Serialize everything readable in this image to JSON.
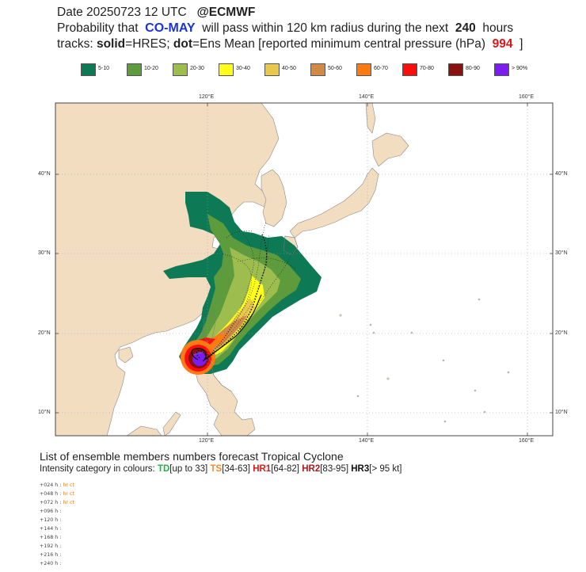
{
  "header": {
    "line1_prefix": "Date 20250723 12 UTC",
    "line1_source": "@ECMWF",
    "line2_prefix": "Probability that",
    "storm_name": "CO-MAY",
    "line2_mid": "will pass within 120 km radius during the next",
    "hours": "240",
    "line2_suffix": "hours",
    "line3_a": "tracks:",
    "line3_solid": "solid",
    "line3_b": "=HRES;",
    "line3_dot": "dot",
    "line3_c": "=Ens Mean [reported minimum central pressure (hPa)",
    "pressure": "994",
    "line3_end": "]"
  },
  "legend": [
    {
      "label": "5-10",
      "color": "#0e7a55"
    },
    {
      "label": "10-20",
      "color": "#5d9b3c"
    },
    {
      "label": "20-30",
      "color": "#9dbd4f"
    },
    {
      "label": "30-40",
      "color": "#ffff1a"
    },
    {
      "label": "40-50",
      "color": "#e9c94b"
    },
    {
      "label": "50-60",
      "color": "#d08a45"
    },
    {
      "label": "60-70",
      "color": "#ff7a12"
    },
    {
      "label": "70-80",
      "color": "#ff0d0d"
    },
    {
      "label": "80-90",
      "color": "#8a1010"
    },
    {
      "label": "> 90%",
      "color": "#7b1cf0"
    }
  ],
  "axes": {
    "lon_labels": [
      "120°E",
      "140°E",
      "160°E"
    ],
    "lat_labels": [
      "40°N",
      "30°N",
      "20°N",
      "10°N"
    ]
  },
  "list": {
    "title": "List of ensemble members numbers forecast Tropical Cyclone",
    "sub_prefix": "Intensity category in colours:",
    "td": "TD",
    "td_range": "[up to 33]",
    "ts": "TS",
    "ts_range": "[34-63]",
    "hr1": "HR1",
    "hr1_range": "[64-82]",
    "hr2": "HR2",
    "hr2_range": "[83-95]",
    "hr3": "HR3",
    "hr3_range": "[> 95 kt]",
    "rows": [
      {
        "lead": "+024 h :",
        "hr": "hr",
        "ct": "ct"
      },
      {
        "lead": "+048 h :",
        "hr": "hr",
        "ct": "ct"
      },
      {
        "lead": "+072 h :",
        "hr": "hr",
        "ct": "ct"
      },
      {
        "lead": "+096 h :",
        "hr": "",
        "ct": ""
      },
      {
        "lead": "+120 h :",
        "hr": "",
        "ct": ""
      },
      {
        "lead": "+144 h :",
        "hr": "",
        "ct": ""
      },
      {
        "lead": "+168 h :",
        "hr": "",
        "ct": ""
      },
      {
        "lead": "+192 h :",
        "hr": "",
        "ct": ""
      },
      {
        "lead": "+216 h :",
        "hr": "",
        "ct": ""
      },
      {
        "lead": "+240 h :",
        "hr": "",
        "ct": ""
      }
    ]
  }
}
